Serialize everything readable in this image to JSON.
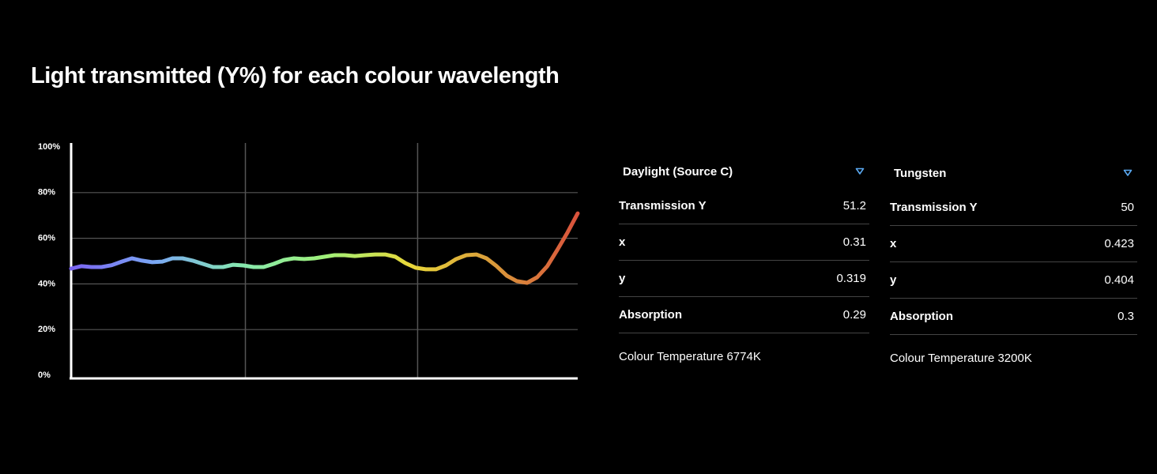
{
  "title": "Light transmitted (Y%) for each colour wavelength",
  "chart_data": {
    "type": "line",
    "values": [
      46.7,
      47.8,
      47.4,
      47.4,
      48.2,
      49.8,
      51.2,
      50.2,
      49.5,
      49.8,
      51.2,
      51.2,
      50.2,
      48.8,
      47.4,
      47.4,
      48.4,
      48.1,
      47.4,
      47.4,
      48.8,
      50.5,
      51.2,
      50.9,
      51.2,
      51.9,
      52.6,
      52.6,
      52.2,
      52.6,
      52.9,
      52.9,
      51.9,
      49.1,
      47.1,
      46.4,
      46.4,
      48.1,
      50.9,
      52.6,
      52.9,
      51.2,
      47.8,
      43.6,
      41.2,
      40.5,
      42.9,
      47.8,
      55.0,
      62.6,
      70.9
    ],
    "ylim": [
      0,
      100
    ],
    "yticks": [
      {
        "value": 0,
        "label": "0%"
      },
      {
        "value": 20,
        "label": "20%"
      },
      {
        "value": 40,
        "label": "40%"
      },
      {
        "value": 60,
        "label": "60%"
      },
      {
        "value": 80,
        "label": "80%"
      },
      {
        "value": 100,
        "label": "100%"
      }
    ],
    "grid": true,
    "colors": [
      "#7a63f2",
      "#7aa8f4",
      "#86e8b0",
      "#9ef07a",
      "#e8d83a",
      "#d99a3a",
      "#d9523c"
    ]
  },
  "panels": [
    {
      "title": "Daylight (Source C)",
      "rows": [
        [
          "Transmission Y",
          "51.2"
        ],
        [
          "x",
          "0.31"
        ],
        [
          "y",
          "0.319"
        ],
        [
          "Absorption",
          "0.29"
        ]
      ],
      "footer": "Colour Temperature 6774K"
    },
    {
      "title": "Tungsten",
      "rows": [
        [
          "Transmission Y",
          "50"
        ],
        [
          "x",
          "0.423"
        ],
        [
          "y",
          "0.404"
        ],
        [
          "Absorption",
          "0.3"
        ]
      ],
      "footer": "Colour Temperature 3200K"
    }
  ]
}
